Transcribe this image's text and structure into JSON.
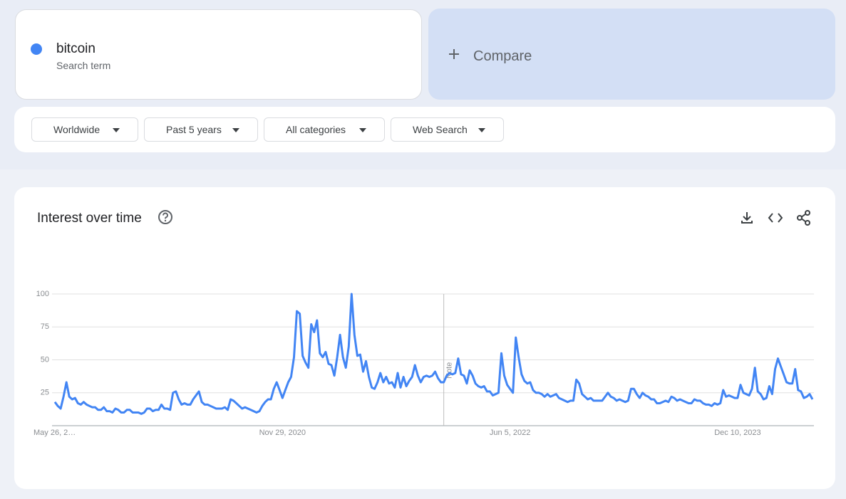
{
  "search_term": {
    "name": "bitcoin",
    "label": "Search term"
  },
  "compare": "Compare",
  "filters": [
    "Worldwide",
    "Past 5 years",
    "All categories",
    "Web Search"
  ],
  "chart_data": {
    "type": "line",
    "title": "Interest over time",
    "xlim": [
      0,
      263
    ],
    "xticks": [
      {
        "value": 0,
        "label": "May 26, 2…"
      },
      {
        "value": 79,
        "label": "Nov 29, 2020"
      },
      {
        "value": 158,
        "label": "Jun 5, 2022"
      },
      {
        "value": 237,
        "label": "Dec 10, 2023"
      }
    ],
    "ylim": [
      0,
      100
    ],
    "yticks": [
      25,
      50,
      75,
      100
    ],
    "grid": true,
    "annotations": [
      {
        "x": 135,
        "label": "Note"
      }
    ],
    "series": [
      {
        "name": "bitcoin",
        "color": "#4285f4",
        "values": [
          18,
          15,
          13,
          22,
          33,
          22,
          20,
          21,
          17,
          16,
          18,
          16,
          15,
          14,
          14,
          12,
          12,
          14,
          11,
          11,
          10,
          13,
          12,
          10,
          10,
          12,
          12,
          10,
          10,
          10,
          9,
          10,
          13,
          13,
          11,
          12,
          12,
          16,
          13,
          13,
          12,
          25,
          26,
          20,
          16,
          17,
          16,
          16,
          20,
          23,
          26,
          18,
          16,
          16,
          15,
          14,
          13,
          13,
          13,
          14,
          12,
          20,
          19,
          17,
          15,
          13,
          14,
          13,
          12,
          11,
          10,
          11,
          15,
          18,
          20,
          20,
          28,
          33,
          27,
          21,
          27,
          33,
          37,
          52,
          87,
          85,
          53,
          48,
          44,
          77,
          71,
          80,
          55,
          52,
          56,
          47,
          46,
          38,
          52,
          69,
          52,
          44,
          60,
          100,
          69,
          53,
          54,
          41,
          49,
          37,
          29,
          28,
          33,
          40,
          33,
          37,
          32,
          33,
          29,
          40,
          29,
          37,
          30,
          34,
          37,
          46,
          38,
          33,
          37,
          38,
          37,
          38,
          41,
          36,
          33,
          33,
          38,
          40,
          39,
          40,
          51,
          39,
          38,
          32,
          42,
          38,
          32,
          30,
          29,
          30,
          26,
          26,
          23,
          24,
          25,
          55,
          38,
          31,
          28,
          25,
          67,
          52,
          39,
          34,
          32,
          33,
          27,
          25,
          25,
          24,
          22,
          24,
          22,
          23,
          24,
          21,
          20,
          19,
          18,
          19,
          19,
          35,
          32,
          24,
          22,
          20,
          21,
          19,
          19,
          19,
          19,
          22,
          25,
          22,
          21,
          19,
          20,
          19,
          18,
          19,
          28,
          28,
          24,
          21,
          25,
          23,
          22,
          20,
          20,
          17,
          17,
          18,
          19,
          18,
          22,
          21,
          19,
          20,
          19,
          18,
          17,
          17,
          20,
          19,
          19,
          17,
          16,
          16,
          15,
          17,
          16,
          17,
          27,
          22,
          23,
          22,
          21,
          21,
          31,
          25,
          24,
          23,
          28,
          44,
          26,
          24,
          20,
          21,
          30,
          24,
          43,
          51,
          45,
          39,
          33,
          32,
          32,
          43,
          27,
          26,
          21,
          22,
          24,
          20
        ]
      }
    ]
  }
}
